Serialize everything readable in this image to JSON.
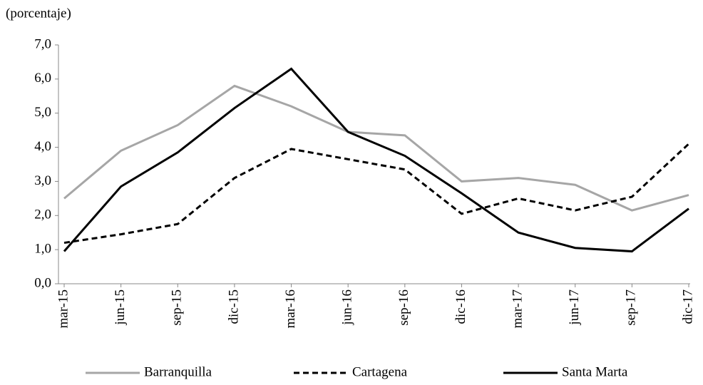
{
  "chart_data": {
    "type": "line",
    "y_label": "(porcentaje)",
    "categories": [
      "mar-15",
      "jun-15",
      "sep-15",
      "dic-15",
      "mar-16",
      "jun-16",
      "sep-16",
      "dic-16",
      "mar-17",
      "jun-17",
      "sep-17",
      "dic-17"
    ],
    "series": [
      {
        "name": "Barranquilla",
        "color": "#a6a6a6",
        "dash": "solid",
        "values": [
          2.5,
          3.9,
          4.65,
          5.8,
          5.2,
          4.45,
          4.35,
          3.0,
          3.1,
          2.9,
          2.15,
          2.6
        ]
      },
      {
        "name": "Cartagena",
        "color": "#000000",
        "dash": "dashed",
        "values": [
          1.2,
          1.45,
          1.75,
          3.1,
          3.95,
          3.65,
          3.35,
          2.05,
          2.5,
          2.15,
          2.55,
          4.1
        ]
      },
      {
        "name": "Santa Marta",
        "color": "#000000",
        "dash": "solid",
        "values": [
          0.95,
          2.85,
          3.85,
          5.15,
          6.3,
          4.45,
          3.75,
          2.65,
          1.5,
          1.05,
          0.95,
          2.2
        ]
      }
    ],
    "ylim": [
      0,
      7
    ],
    "yticks": [
      {
        "value": 0,
        "label": "0,0"
      },
      {
        "value": 1,
        "label": "1,0"
      },
      {
        "value": 2,
        "label": "2,0"
      },
      {
        "value": 3,
        "label": "3,0"
      },
      {
        "value": 4,
        "label": "4,0"
      },
      {
        "value": 5,
        "label": "5,0"
      },
      {
        "value": 6,
        "label": "6,0"
      },
      {
        "value": 7,
        "label": "7,0"
      }
    ],
    "legend": "bottom"
  }
}
